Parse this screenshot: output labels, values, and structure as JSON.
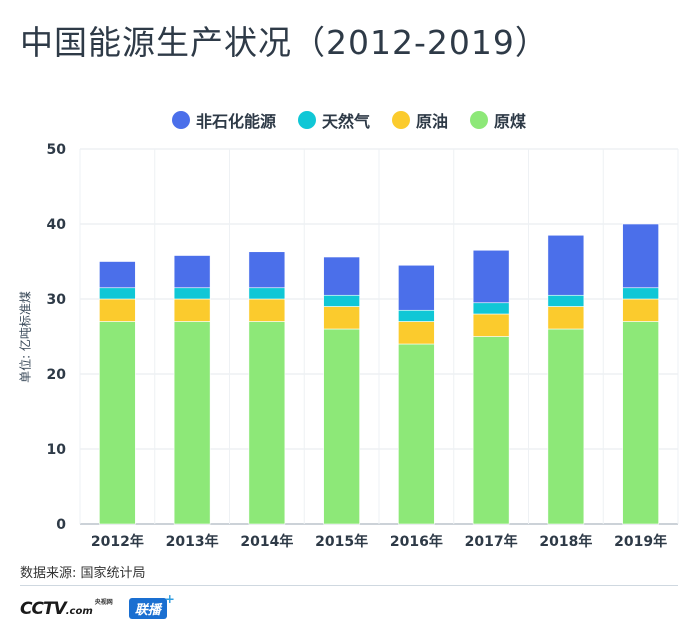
{
  "title": "中国能源生产状况（2012-2019）",
  "legend": [
    {
      "label": "非石化能源",
      "color": "#4b6fea"
    },
    {
      "label": "天然气",
      "color": "#10c7d6"
    },
    {
      "label": "原油",
      "color": "#fbcb2d"
    },
    {
      "label": "原煤",
      "color": "#8de878"
    }
  ],
  "source": "数据来源: 国家统计局",
  "logos": {
    "cctv_text": "CCTV",
    "cctv_suffix": ".com",
    "cctv_cn": "央视网",
    "lianbo_text": "联播"
  },
  "chart_data": {
    "type": "bar",
    "stacked": true,
    "title": "中国能源生产状况（2012-2019）",
    "xlabel": "",
    "ylabel": "单位: 亿吨标准煤",
    "ylim": [
      0,
      50
    ],
    "yticks": [
      0,
      10,
      20,
      30,
      40,
      50
    ],
    "grid": true,
    "legend_position": "top-center",
    "categories": [
      "2012年",
      "2013年",
      "2014年",
      "2015年",
      "2016年",
      "2017年",
      "2018年",
      "2019年"
    ],
    "series": [
      {
        "name": "原煤",
        "color": "#8de878",
        "values": [
          27,
          27,
          27,
          26,
          24,
          25,
          26,
          27
        ]
      },
      {
        "name": "原油",
        "color": "#fbcb2d",
        "values": [
          3,
          3,
          3,
          3,
          3,
          3,
          3,
          3
        ]
      },
      {
        "name": "天然气",
        "color": "#10c7d6",
        "values": [
          1.5,
          1.5,
          1.5,
          1.5,
          1.5,
          1.5,
          1.5,
          1.5
        ]
      },
      {
        "name": "非石化能源",
        "color": "#4b6fea",
        "values": [
          3.5,
          4.3,
          4.8,
          5.1,
          6,
          7,
          8,
          8.5
        ]
      }
    ]
  }
}
